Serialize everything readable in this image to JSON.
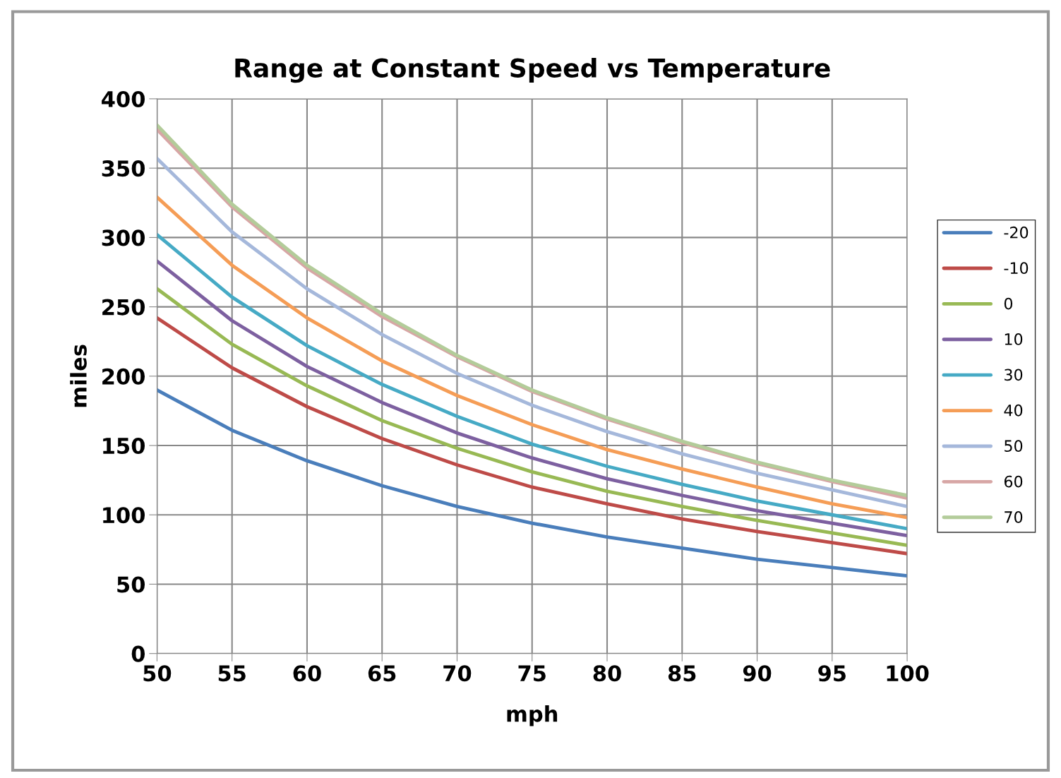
{
  "chart_data": {
    "type": "line",
    "title": "Range at Constant Speed vs Temperature",
    "xlabel": "mph",
    "ylabel": "miles",
    "x": [
      50,
      55,
      60,
      65,
      70,
      75,
      80,
      85,
      90,
      95,
      100
    ],
    "xlim": [
      50,
      100
    ],
    "xticks": [
      50,
      55,
      60,
      65,
      70,
      75,
      80,
      85,
      90,
      95,
      100
    ],
    "ylim": [
      0,
      400
    ],
    "yticks": [
      0,
      50,
      100,
      150,
      200,
      250,
      300,
      350,
      400
    ],
    "grid": true,
    "legend": "right",
    "marker": "none",
    "line_style": "solid",
    "series": [
      {
        "name": "-20",
        "color": "#4a7ebb",
        "values": [
          190,
          161,
          139,
          121,
          106,
          94,
          84,
          76,
          68,
          62,
          56
        ]
      },
      {
        "name": "-10",
        "color": "#be4b48",
        "values": [
          242,
          206,
          178,
          155,
          136,
          120,
          108,
          97,
          88,
          80,
          72
        ]
      },
      {
        "name": "0",
        "color": "#98b954",
        "values": [
          263,
          223,
          193,
          168,
          148,
          131,
          117,
          106,
          96,
          87,
          78
        ]
      },
      {
        "name": "10",
        "color": "#7d60a0",
        "values": [
          283,
          240,
          207,
          181,
          159,
          141,
          126,
          114,
          103,
          94,
          85
        ]
      },
      {
        "name": "30",
        "color": "#46aac5",
        "values": [
          302,
          257,
          222,
          194,
          171,
          151,
          135,
          122,
          110,
          100,
          90
        ]
      },
      {
        "name": "40",
        "color": "#f59d56",
        "values": [
          329,
          280,
          242,
          211,
          186,
          165,
          147,
          133,
          120,
          108,
          98
        ]
      },
      {
        "name": "50",
        "color": "#a5b8db",
        "values": [
          357,
          304,
          263,
          230,
          202,
          179,
          160,
          144,
          130,
          118,
          106
        ]
      },
      {
        "name": "60",
        "color": "#d7a6a5",
        "values": [
          378,
          322,
          278,
          243,
          214,
          189,
          169,
          152,
          137,
          124,
          112
        ]
      },
      {
        "name": "70",
        "color": "#b3cc9a",
        "values": [
          381,
          324,
          280,
          245,
          215,
          190,
          170,
          153,
          138,
          125,
          114
        ]
      }
    ]
  }
}
